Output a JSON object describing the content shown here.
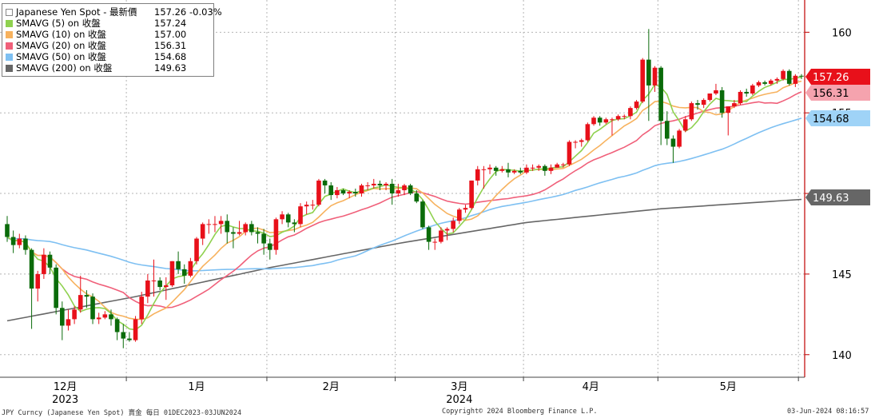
{
  "legend": [
    {
      "name": "Japanese Yen Spot - 最新價",
      "value": "157.26",
      "change": "-0.03%",
      "color": "#ffffff"
    },
    {
      "name": "SMAVG (5)  on 收盤",
      "value": "157.24",
      "color": "#8fd14f"
    },
    {
      "name": "SMAVG (10)  on 收盤",
      "value": "157.00",
      "color": "#f7b25e"
    },
    {
      "name": "SMAVG (20)  on 收盤",
      "value": "156.31",
      "color": "#f0607a"
    },
    {
      "name": "SMAVG (50)  on 收盤",
      "value": "154.68",
      "color": "#7ec0f2"
    },
    {
      "name": "SMAVG (200)  on 收盤",
      "value": "149.63",
      "color": "#666666"
    }
  ],
  "footer": {
    "left": "JPY Curncy (Japanese Yen Spot) 賣金  每日 01DEC2023-03JUN2024",
    "center": "Copyright© 2024 Bloomberg Finance L.P.",
    "right": "03-Jun-2024 08:16:57"
  },
  "chart_data": {
    "type": "candlestick",
    "ylim": [
      138.6,
      162
    ],
    "y_ticks": [
      140,
      145,
      150,
      155,
      160
    ],
    "x_month_labels": [
      "12月",
      "1月",
      "2月",
      "3月",
      "4月",
      "5月"
    ],
    "x_year_labels": [
      "2023",
      "2024"
    ],
    "price_tags": [
      {
        "value": "157.26",
        "bg": "#e8101a",
        "fg": "#ffffff"
      },
      {
        "value": "156.31",
        "bg": "#f5a3ae",
        "fg": "#000000"
      },
      {
        "value": "154.68",
        "bg": "#9fd3f7",
        "fg": "#000000"
      },
      {
        "value": "149.63",
        "bg": "#666666",
        "fg": "#ffffff"
      }
    ],
    "up_color": "#e8101a",
    "down_color": "#0a6b0a",
    "candles": [
      {
        "date": "2023-12-01",
        "o": 148.1,
        "h": 148.6,
        "l": 147.0,
        "c": 147.3
      },
      {
        "date": "2023-12-04",
        "o": 147.3,
        "h": 147.7,
        "l": 146.3,
        "c": 146.8
      },
      {
        "date": "2023-12-05",
        "o": 146.8,
        "h": 147.5,
        "l": 146.6,
        "c": 147.2
      },
      {
        "date": "2023-12-06",
        "o": 147.2,
        "h": 147.4,
        "l": 146.2,
        "c": 146.5
      },
      {
        "date": "2023-12-07",
        "o": 146.5,
        "h": 146.6,
        "l": 141.6,
        "c": 144.1
      },
      {
        "date": "2023-12-08",
        "o": 144.1,
        "h": 145.2,
        "l": 143.3,
        "c": 145.0
      },
      {
        "date": "2023-12-11",
        "o": 145.0,
        "h": 146.6,
        "l": 144.7,
        "c": 146.2
      },
      {
        "date": "2023-12-12",
        "o": 146.2,
        "h": 146.4,
        "l": 145.0,
        "c": 145.4
      },
      {
        "date": "2023-12-13",
        "o": 145.4,
        "h": 145.6,
        "l": 142.5,
        "c": 142.9
      },
      {
        "date": "2023-12-14",
        "o": 142.9,
        "h": 143.3,
        "l": 140.9,
        "c": 141.8
      },
      {
        "date": "2023-12-15",
        "o": 141.8,
        "h": 142.8,
        "l": 141.5,
        "c": 142.2
      },
      {
        "date": "2023-12-18",
        "o": 142.2,
        "h": 143.0,
        "l": 141.9,
        "c": 142.8
      },
      {
        "date": "2023-12-19",
        "o": 142.8,
        "h": 144.9,
        "l": 142.6,
        "c": 143.7
      },
      {
        "date": "2023-12-20",
        "o": 143.7,
        "h": 144.0,
        "l": 142.9,
        "c": 143.6
      },
      {
        "date": "2023-12-21",
        "o": 143.6,
        "h": 143.8,
        "l": 141.9,
        "c": 142.2
      },
      {
        "date": "2023-12-22",
        "o": 142.2,
        "h": 142.6,
        "l": 141.9,
        "c": 142.3
      },
      {
        "date": "2023-12-26",
        "o": 142.3,
        "h": 142.7,
        "l": 142.2,
        "c": 142.5
      },
      {
        "date": "2023-12-27",
        "o": 142.5,
        "h": 142.8,
        "l": 141.8,
        "c": 142.2
      },
      {
        "date": "2023-12-28",
        "o": 142.2,
        "h": 142.3,
        "l": 140.9,
        "c": 141.4
      },
      {
        "date": "2023-12-29",
        "o": 141.4,
        "h": 141.9,
        "l": 140.4,
        "c": 141.0
      },
      {
        "date": "2024-01-01",
        "o": 141.0,
        "h": 141.4,
        "l": 140.8,
        "c": 140.9
      },
      {
        "date": "2024-01-02",
        "o": 140.9,
        "h": 142.4,
        "l": 140.8,
        "c": 142.2
      },
      {
        "date": "2024-01-03",
        "o": 142.2,
        "h": 143.9,
        "l": 141.9,
        "c": 143.6
      },
      {
        "date": "2024-01-04",
        "o": 143.6,
        "h": 145.0,
        "l": 143.2,
        "c": 144.6
      },
      {
        "date": "2024-01-05",
        "o": 144.6,
        "h": 145.9,
        "l": 143.6,
        "c": 144.6
      },
      {
        "date": "2024-01-08",
        "o": 144.6,
        "h": 144.8,
        "l": 144.0,
        "c": 144.2
      },
      {
        "date": "2024-01-09",
        "o": 144.2,
        "h": 144.8,
        "l": 143.4,
        "c": 144.3
      },
      {
        "date": "2024-01-10",
        "o": 144.3,
        "h": 145.8,
        "l": 144.2,
        "c": 145.8
      },
      {
        "date": "2024-01-11",
        "o": 145.8,
        "h": 146.4,
        "l": 145.0,
        "c": 145.3
      },
      {
        "date": "2024-01-12",
        "o": 145.3,
        "h": 145.6,
        "l": 144.4,
        "c": 144.9
      },
      {
        "date": "2024-01-15",
        "o": 144.9,
        "h": 146.0,
        "l": 144.8,
        "c": 145.8
      },
      {
        "date": "2024-01-16",
        "o": 145.8,
        "h": 147.3,
        "l": 145.6,
        "c": 147.2
      },
      {
        "date": "2024-01-17",
        "o": 147.2,
        "h": 148.2,
        "l": 146.8,
        "c": 148.1
      },
      {
        "date": "2024-01-18",
        "o": 148.1,
        "h": 148.4,
        "l": 147.5,
        "c": 148.1
      },
      {
        "date": "2024-01-19",
        "o": 148.1,
        "h": 148.6,
        "l": 147.6,
        "c": 148.1
      },
      {
        "date": "2024-01-22",
        "o": 148.1,
        "h": 148.6,
        "l": 147.5,
        "c": 148.3
      },
      {
        "date": "2024-01-23",
        "o": 148.3,
        "h": 148.7,
        "l": 146.9,
        "c": 147.6
      },
      {
        "date": "2024-01-24",
        "o": 147.6,
        "h": 147.9,
        "l": 146.6,
        "c": 147.5
      },
      {
        "date": "2024-01-25",
        "o": 147.5,
        "h": 148.3,
        "l": 147.4,
        "c": 147.6
      },
      {
        "date": "2024-01-26",
        "o": 147.6,
        "h": 148.2,
        "l": 147.4,
        "c": 148.1
      },
      {
        "date": "2024-01-29",
        "o": 148.1,
        "h": 148.3,
        "l": 147.4,
        "c": 147.6
      },
      {
        "date": "2024-01-30",
        "o": 147.6,
        "h": 147.9,
        "l": 146.9,
        "c": 147.5
      },
      {
        "date": "2024-01-31",
        "o": 147.5,
        "h": 147.8,
        "l": 146.2,
        "c": 146.9
      },
      {
        "date": "2024-02-01",
        "o": 146.9,
        "h": 147.2,
        "l": 145.9,
        "c": 146.5
      },
      {
        "date": "2024-02-02",
        "o": 146.5,
        "h": 148.5,
        "l": 146.2,
        "c": 148.4
      },
      {
        "date": "2024-02-05",
        "o": 148.4,
        "h": 148.9,
        "l": 148.1,
        "c": 148.7
      },
      {
        "date": "2024-02-06",
        "o": 148.7,
        "h": 148.8,
        "l": 147.9,
        "c": 148.2
      },
      {
        "date": "2024-02-07",
        "o": 148.2,
        "h": 148.4,
        "l": 147.6,
        "c": 148.1
      },
      {
        "date": "2024-02-08",
        "o": 148.1,
        "h": 149.4,
        "l": 147.9,
        "c": 149.2
      },
      {
        "date": "2024-02-09",
        "o": 149.2,
        "h": 149.5,
        "l": 148.7,
        "c": 149.3
      },
      {
        "date": "2024-02-12",
        "o": 149.3,
        "h": 149.6,
        "l": 149.0,
        "c": 149.3
      },
      {
        "date": "2024-02-13",
        "o": 149.3,
        "h": 150.9,
        "l": 149.2,
        "c": 150.8
      },
      {
        "date": "2024-02-14",
        "o": 150.8,
        "h": 150.9,
        "l": 150.0,
        "c": 150.5
      },
      {
        "date": "2024-02-15",
        "o": 150.5,
        "h": 150.7,
        "l": 149.6,
        "c": 149.9
      },
      {
        "date": "2024-02-16",
        "o": 149.9,
        "h": 150.4,
        "l": 149.7,
        "c": 150.2
      },
      {
        "date": "2024-02-19",
        "o": 150.2,
        "h": 150.3,
        "l": 149.9,
        "c": 150.0
      },
      {
        "date": "2024-02-20",
        "o": 150.0,
        "h": 150.2,
        "l": 149.7,
        "c": 150.1
      },
      {
        "date": "2024-02-21",
        "o": 150.1,
        "h": 150.3,
        "l": 149.8,
        "c": 150.0
      },
      {
        "date": "2024-02-22",
        "o": 150.0,
        "h": 150.6,
        "l": 149.8,
        "c": 150.5
      },
      {
        "date": "2024-02-23",
        "o": 150.5,
        "h": 150.7,
        "l": 150.2,
        "c": 150.5
      },
      {
        "date": "2024-02-26",
        "o": 150.5,
        "h": 150.9,
        "l": 150.3,
        "c": 150.6
      },
      {
        "date": "2024-02-27",
        "o": 150.6,
        "h": 150.8,
        "l": 150.2,
        "c": 150.5
      },
      {
        "date": "2024-02-28",
        "o": 150.5,
        "h": 150.7,
        "l": 150.2,
        "c": 150.6
      },
      {
        "date": "2024-02-29",
        "o": 150.6,
        "h": 150.9,
        "l": 149.3,
        "c": 150.0
      },
      {
        "date": "2024-03-01",
        "o": 150.0,
        "h": 150.6,
        "l": 149.8,
        "c": 150.2
      },
      {
        "date": "2024-03-04",
        "o": 150.2,
        "h": 150.6,
        "l": 149.9,
        "c": 150.5
      },
      {
        "date": "2024-03-05",
        "o": 150.5,
        "h": 150.6,
        "l": 149.9,
        "c": 150.0
      },
      {
        "date": "2024-03-06",
        "o": 150.0,
        "h": 150.2,
        "l": 149.4,
        "c": 149.5
      },
      {
        "date": "2024-03-07",
        "o": 149.5,
        "h": 149.6,
        "l": 147.8,
        "c": 147.9
      },
      {
        "date": "2024-03-08",
        "o": 147.9,
        "h": 148.0,
        "l": 146.5,
        "c": 147.0
      },
      {
        "date": "2024-03-11",
        "o": 147.0,
        "h": 147.2,
        "l": 146.5,
        "c": 147.0
      },
      {
        "date": "2024-03-12",
        "o": 147.0,
        "h": 147.9,
        "l": 146.9,
        "c": 147.7
      },
      {
        "date": "2024-03-13",
        "o": 147.7,
        "h": 147.9,
        "l": 147.1,
        "c": 147.8
      },
      {
        "date": "2024-03-14",
        "o": 147.8,
        "h": 148.5,
        "l": 147.6,
        "c": 148.3
      },
      {
        "date": "2024-03-15",
        "o": 148.3,
        "h": 149.1,
        "l": 148.1,
        "c": 149.0
      },
      {
        "date": "2024-03-18",
        "o": 149.0,
        "h": 149.3,
        "l": 148.8,
        "c": 149.1
      },
      {
        "date": "2024-03-19",
        "o": 149.1,
        "h": 150.8,
        "l": 149.0,
        "c": 150.8
      },
      {
        "date": "2024-03-20",
        "o": 150.8,
        "h": 151.7,
        "l": 150.5,
        "c": 151.5
      },
      {
        "date": "2024-03-21",
        "o": 151.5,
        "h": 151.7,
        "l": 150.3,
        "c": 151.5
      },
      {
        "date": "2024-03-22",
        "o": 151.5,
        "h": 151.8,
        "l": 151.2,
        "c": 151.6
      },
      {
        "date": "2024-03-25",
        "o": 151.6,
        "h": 151.7,
        "l": 151.1,
        "c": 151.4
      },
      {
        "date": "2024-03-26",
        "o": 151.4,
        "h": 151.7,
        "l": 151.3,
        "c": 151.5
      },
      {
        "date": "2024-03-27",
        "o": 151.5,
        "h": 151.9,
        "l": 151.0,
        "c": 151.3
      },
      {
        "date": "2024-03-28",
        "o": 151.3,
        "h": 151.5,
        "l": 151.2,
        "c": 151.4
      },
      {
        "date": "2024-03-29",
        "o": 151.4,
        "h": 151.6,
        "l": 151.2,
        "c": 151.3
      },
      {
        "date": "2024-04-01",
        "o": 151.3,
        "h": 151.8,
        "l": 151.2,
        "c": 151.6
      },
      {
        "date": "2024-04-02",
        "o": 151.6,
        "h": 151.8,
        "l": 151.4,
        "c": 151.6
      },
      {
        "date": "2024-04-03",
        "o": 151.6,
        "h": 151.8,
        "l": 151.4,
        "c": 151.7
      },
      {
        "date": "2024-04-04",
        "o": 151.7,
        "h": 151.8,
        "l": 151.1,
        "c": 151.4
      },
      {
        "date": "2024-04-05",
        "o": 151.4,
        "h": 151.8,
        "l": 151.2,
        "c": 151.6
      },
      {
        "date": "2024-04-08",
        "o": 151.6,
        "h": 151.9,
        "l": 151.6,
        "c": 151.8
      },
      {
        "date": "2024-04-09",
        "o": 151.8,
        "h": 151.9,
        "l": 151.6,
        "c": 151.8
      },
      {
        "date": "2024-04-10",
        "o": 151.8,
        "h": 153.3,
        "l": 151.7,
        "c": 153.2
      },
      {
        "date": "2024-04-11",
        "o": 153.2,
        "h": 153.3,
        "l": 152.8,
        "c": 153.2
      },
      {
        "date": "2024-04-12",
        "o": 153.2,
        "h": 153.4,
        "l": 152.9,
        "c": 153.3
      },
      {
        "date": "2024-04-15",
        "o": 153.3,
        "h": 154.4,
        "l": 153.2,
        "c": 154.3
      },
      {
        "date": "2024-04-16",
        "o": 154.3,
        "h": 154.8,
        "l": 154.2,
        "c": 154.7
      },
      {
        "date": "2024-04-17",
        "o": 154.7,
        "h": 154.8,
        "l": 154.2,
        "c": 154.4
      },
      {
        "date": "2024-04-18",
        "o": 154.4,
        "h": 154.7,
        "l": 154.3,
        "c": 154.6
      },
      {
        "date": "2024-04-19",
        "o": 154.6,
        "h": 154.7,
        "l": 153.6,
        "c": 154.6
      },
      {
        "date": "2024-04-22",
        "o": 154.6,
        "h": 154.9,
        "l": 154.5,
        "c": 154.8
      },
      {
        "date": "2024-04-23",
        "o": 154.8,
        "h": 154.9,
        "l": 154.6,
        "c": 154.8
      },
      {
        "date": "2024-04-24",
        "o": 154.8,
        "h": 155.4,
        "l": 154.6,
        "c": 155.3
      },
      {
        "date": "2024-04-25",
        "o": 155.3,
        "h": 155.8,
        "l": 155.2,
        "c": 155.7
      },
      {
        "date": "2024-04-26",
        "o": 155.7,
        "h": 158.4,
        "l": 155.6,
        "c": 158.3
      },
      {
        "date": "2024-04-29",
        "o": 158.3,
        "h": 160.2,
        "l": 154.5,
        "c": 156.7
      },
      {
        "date": "2024-04-30",
        "o": 156.7,
        "h": 157.9,
        "l": 156.3,
        "c": 157.8
      },
      {
        "date": "2024-05-01",
        "o": 157.8,
        "h": 157.9,
        "l": 153.0,
        "c": 154.5
      },
      {
        "date": "2024-05-02",
        "o": 154.5,
        "h": 155.1,
        "l": 153.0,
        "c": 153.4
      },
      {
        "date": "2024-05-03",
        "o": 153.4,
        "h": 153.6,
        "l": 151.9,
        "c": 152.9
      },
      {
        "date": "2024-05-06",
        "o": 152.9,
        "h": 154.0,
        "l": 152.8,
        "c": 153.9
      },
      {
        "date": "2024-05-07",
        "o": 153.9,
        "h": 154.8,
        "l": 153.8,
        "c": 154.6
      },
      {
        "date": "2024-05-08",
        "o": 154.6,
        "h": 155.7,
        "l": 154.5,
        "c": 155.6
      },
      {
        "date": "2024-05-09",
        "o": 155.6,
        "h": 155.8,
        "l": 155.2,
        "c": 155.5
      },
      {
        "date": "2024-05-10",
        "o": 155.5,
        "h": 155.9,
        "l": 155.3,
        "c": 155.8
      },
      {
        "date": "2024-05-13",
        "o": 155.8,
        "h": 156.2,
        "l": 155.7,
        "c": 156.2
      },
      {
        "date": "2024-05-14",
        "o": 156.2,
        "h": 156.8,
        "l": 156.1,
        "c": 156.4
      },
      {
        "date": "2024-05-15",
        "o": 156.4,
        "h": 156.6,
        "l": 154.7,
        "c": 155.0
      },
      {
        "date": "2024-05-16",
        "o": 155.0,
        "h": 155.4,
        "l": 153.6,
        "c": 155.4
      },
      {
        "date": "2024-05-17",
        "o": 155.4,
        "h": 155.8,
        "l": 155.3,
        "c": 155.6
      },
      {
        "date": "2024-05-20",
        "o": 155.6,
        "h": 156.4,
        "l": 155.5,
        "c": 156.3
      },
      {
        "date": "2024-05-21",
        "o": 156.3,
        "h": 156.5,
        "l": 156.0,
        "c": 156.2
      },
      {
        "date": "2024-05-22",
        "o": 156.2,
        "h": 156.8,
        "l": 156.1,
        "c": 156.7
      },
      {
        "date": "2024-05-23",
        "o": 156.7,
        "h": 157.0,
        "l": 156.6,
        "c": 156.9
      },
      {
        "date": "2024-05-24",
        "o": 156.9,
        "h": 157.0,
        "l": 156.7,
        "c": 156.8
      },
      {
        "date": "2024-05-27",
        "o": 156.8,
        "h": 157.1,
        "l": 156.7,
        "c": 157.0
      },
      {
        "date": "2024-05-28",
        "o": 157.0,
        "h": 157.2,
        "l": 156.8,
        "c": 157.1
      },
      {
        "date": "2024-05-29",
        "o": 157.1,
        "h": 157.7,
        "l": 157.0,
        "c": 157.6
      },
      {
        "date": "2024-05-30",
        "o": 157.6,
        "h": 157.7,
        "l": 156.7,
        "c": 156.8
      },
      {
        "date": "2024-05-31",
        "o": 156.8,
        "h": 157.4,
        "l": 156.6,
        "c": 157.3
      },
      {
        "date": "2024-06-03",
        "o": 157.3,
        "h": 157.4,
        "l": 157.1,
        "c": 157.26
      }
    ],
    "ma200": [
      {
        "date": "2023-12-01",
        "y": 142.1
      },
      {
        "date": "2024-01-02",
        "y": 143.6
      },
      {
        "date": "2024-02-01",
        "y": 145.4
      },
      {
        "date": "2024-03-01",
        "y": 146.9
      },
      {
        "date": "2024-04-01",
        "y": 148.2
      },
      {
        "date": "2024-05-01",
        "y": 149.05
      },
      {
        "date": "2024-06-03",
        "y": 149.63
      }
    ]
  }
}
